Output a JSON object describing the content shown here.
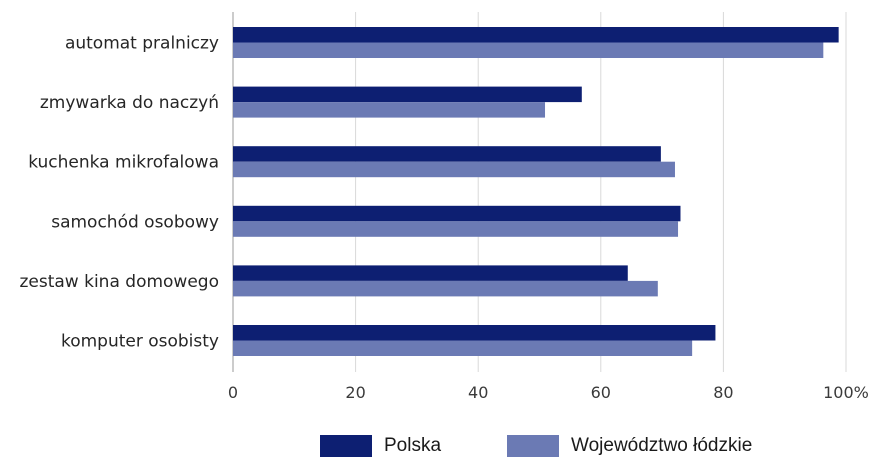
{
  "chart_data": {
    "type": "bar",
    "orientation": "horizontal",
    "categories": [
      "automat pralniczy",
      "zmywarka do naczyń",
      "kuchenka mikrofalowa",
      "samochód osobowy",
      "zestaw kina domowego",
      "komputer osobisty"
    ],
    "series": [
      {
        "name": "Polska",
        "color": "#0d1f72",
        "values": [
          98.8,
          56.9,
          69.8,
          73.0,
          64.4,
          78.7
        ]
      },
      {
        "name": "Województwo łódzkie",
        "color": "#6b7ab4",
        "values": [
          96.3,
          50.9,
          72.1,
          72.6,
          69.3,
          74.9
        ]
      }
    ],
    "xaxis": {
      "min": 0,
      "max": 100,
      "ticks": [
        "0",
        "20",
        "40",
        "60",
        "80",
        "100%"
      ]
    },
    "grid": "vertical",
    "legend": "bottom-center"
  }
}
